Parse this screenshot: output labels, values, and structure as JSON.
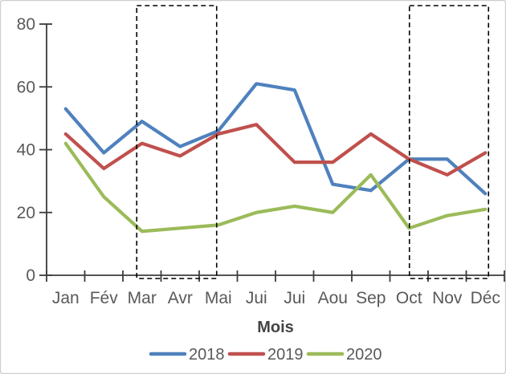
{
  "window": {
    "background": "#ffffff",
    "border_color": "#cfcfcf"
  },
  "chart_data": {
    "type": "line",
    "title": "",
    "xlabel": "Mois",
    "ylabel": "",
    "categories": [
      "Jan",
      "Fév",
      "Mar",
      "Avr",
      "Mai",
      "Jui",
      "Jui",
      "Aou",
      "Sep",
      "Oct",
      "Nov",
      "Déc"
    ],
    "series": [
      {
        "name": "2018",
        "color": "#4F81BD",
        "values": [
          53,
          39,
          49,
          41,
          46,
          61,
          59,
          29,
          27,
          37,
          37,
          26
        ]
      },
      {
        "name": "2019",
        "color": "#C0504D",
        "values": [
          45,
          34,
          42,
          38,
          45,
          48,
          36,
          36,
          45,
          37,
          32,
          39
        ]
      },
      {
        "name": "2020",
        "color": "#9BBB59",
        "values": [
          42,
          25,
          14,
          15,
          16,
          20,
          22,
          20,
          32,
          15,
          19,
          21
        ]
      }
    ],
    "ylim": [
      0,
      80
    ],
    "yticks": [
      0,
      20,
      40,
      60,
      80
    ],
    "grid": false,
    "legend_position": "bottom",
    "annotations": [
      {
        "type": "dashed-box",
        "name": "highlight-box-mar-mai",
        "from": "Mar",
        "to": "Mai"
      },
      {
        "type": "dashed-box",
        "name": "highlight-box-oct-dec",
        "from": "Oct",
        "to": "Déc"
      }
    ]
  },
  "styles": {
    "axis_color": "#3b3b3b",
    "tick_label_color": "#595959",
    "axis_title_color": "#444444",
    "legend_text_color": "#595959",
    "annotation_box_color": "#000000"
  }
}
